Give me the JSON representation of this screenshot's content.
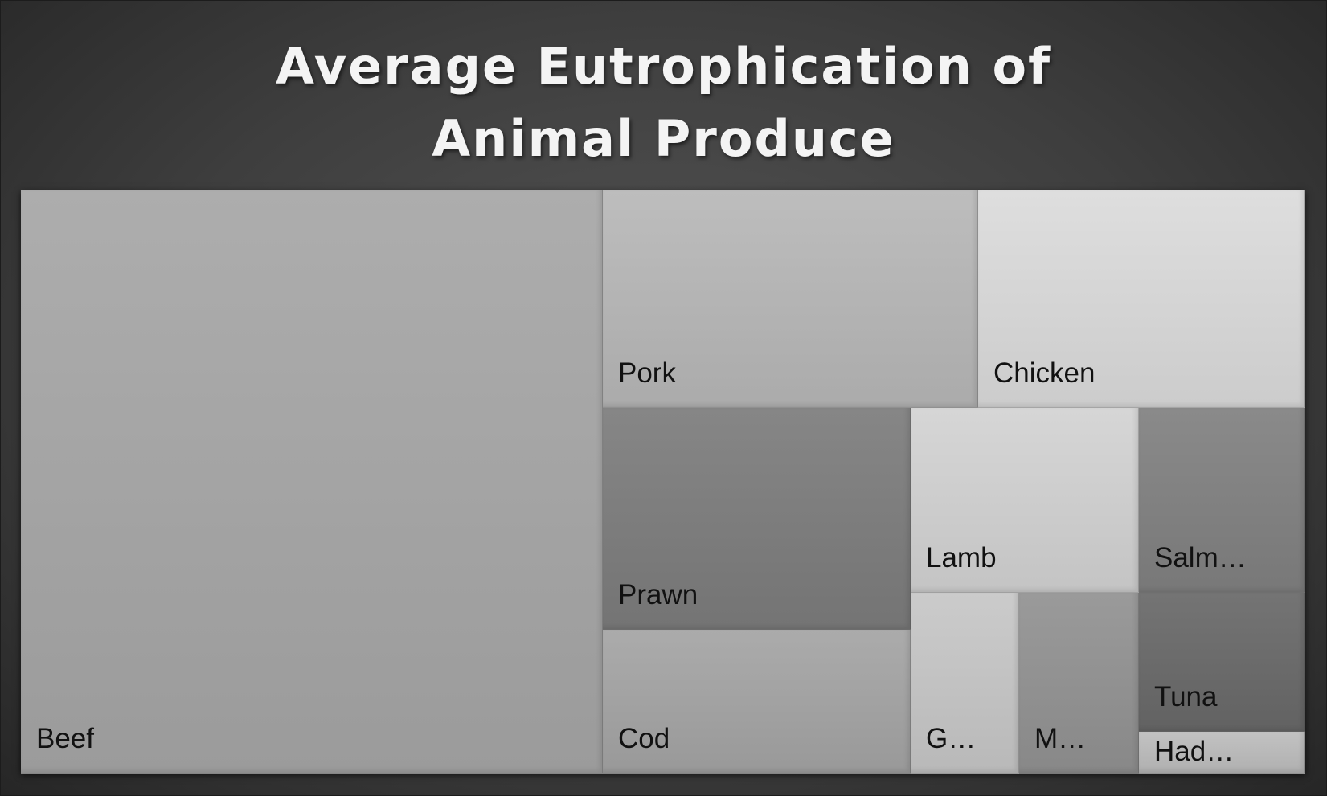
{
  "chart_data": {
    "type": "treemap",
    "title_lines": [
      "Average Eutrophication of",
      "Animal Produce"
    ],
    "items": [
      {
        "name": "Beef",
        "label": "Beef",
        "value": 676,
        "color": "#adadad"
      },
      {
        "name": "Pork",
        "label": "Pork",
        "value": 163,
        "color": "#bdbdbd"
      },
      {
        "name": "Chicken",
        "label": "Chicken",
        "value": 142,
        "color": "#dedede"
      },
      {
        "name": "Prawn",
        "label": "Prawn",
        "value": 136,
        "color": "#868686"
      },
      {
        "name": "Cod",
        "label": "Cod",
        "value": 88,
        "color": "#ababab"
      },
      {
        "name": "Lamb",
        "label": "Lamb",
        "value": 84,
        "color": "#d6d6d6"
      },
      {
        "name": "Salmon",
        "label": "Salm…",
        "value": 61,
        "color": "#8a8a8a"
      },
      {
        "name": "Tuna",
        "label": "Tuna",
        "value": 46,
        "color": "#747474"
      },
      {
        "name": "Mussels",
        "label": "M…",
        "value": 43,
        "color": "#9a9a9a"
      },
      {
        "name": "Goat",
        "label": "G…",
        "value": 39,
        "color": "#cbcbcb"
      },
      {
        "name": "Haddock",
        "label": "Had…",
        "value": 14,
        "color": "#c2c2c2"
      }
    ]
  }
}
